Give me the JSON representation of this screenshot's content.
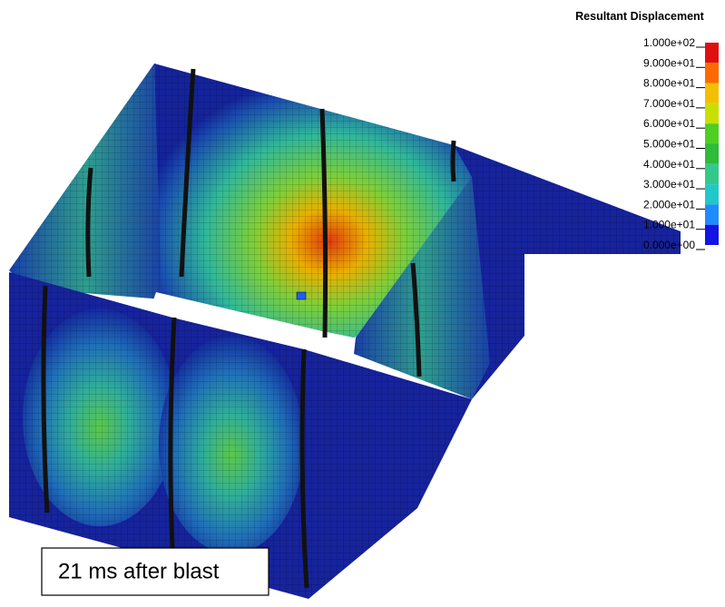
{
  "legend": {
    "title": "Resultant Displacement",
    "labels": [
      "1.000e+02",
      "9.000e+01",
      "8.000e+01",
      "7.000e+01",
      "6.000e+01",
      "5.000e+01",
      "4.000e+01",
      "3.000e+01",
      "2.000e+01",
      "1.000e+01",
      "0.000e+00"
    ],
    "colors": [
      "#e01010",
      "#ff6a00",
      "#f2c000",
      "#c8e000",
      "#4fcf20",
      "#2fba3a",
      "#33c98a",
      "#20c8c8",
      "#1e8cff",
      "#1414e6"
    ]
  },
  "caption": "21 ms after blast"
}
